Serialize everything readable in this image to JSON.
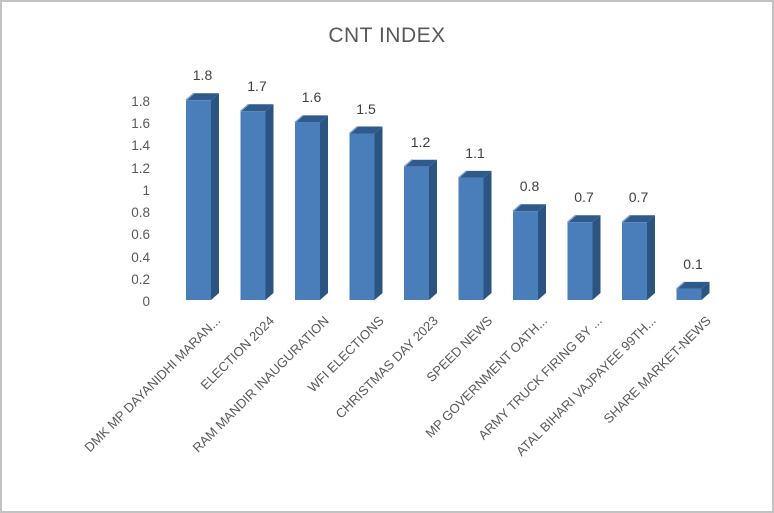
{
  "window": {
    "background": "#ffffff",
    "border_color": "#c3c3c3"
  },
  "chart_data": {
    "type": "bar",
    "style": "3d-column",
    "title": "CNT INDEX",
    "categories": [
      "DMK MP DAYANIDHI MARAN...",
      "ELECTION 2024",
      "RAM MANDIR INAUGURATION",
      "WFI ELECTIONS",
      "CHRISTMAS DAY 2023",
      "SPEED NEWS",
      "MP GOVERNMENT OATH...",
      "ARMY TRUCK FIRING BY ...",
      "ATAL BIHARI VAJPAYEE 99TH...",
      "SHARE MARKET-NEWS"
    ],
    "values": [
      1.8,
      1.7,
      1.6,
      1.5,
      1.2,
      1.1,
      0.8,
      0.7,
      0.7,
      0.1
    ],
    "data_labels": [
      "1.8",
      "1.7",
      "1.6",
      "1.5",
      "1.2",
      "1.1",
      "0.8",
      "0.7",
      "0.7",
      "0.1"
    ],
    "y_ticks": [
      "0",
      "0.2",
      "0.4",
      "0.6",
      "0.8",
      "1",
      "1.2",
      "1.4",
      "1.6",
      "1.8"
    ],
    "ylim": [
      0,
      1.8
    ],
    "xlabel": "",
    "ylabel": "",
    "grid": "off",
    "legend": "none",
    "colors": {
      "bar_front": "#4a7ebb",
      "bar_side": "#2b5480",
      "bar_top": "#2f5a8c",
      "bar_top_highlight": "#7fa3cc",
      "title_text": "#595959",
      "axis_text": "#595959",
      "data_label_text": "#404040"
    }
  }
}
